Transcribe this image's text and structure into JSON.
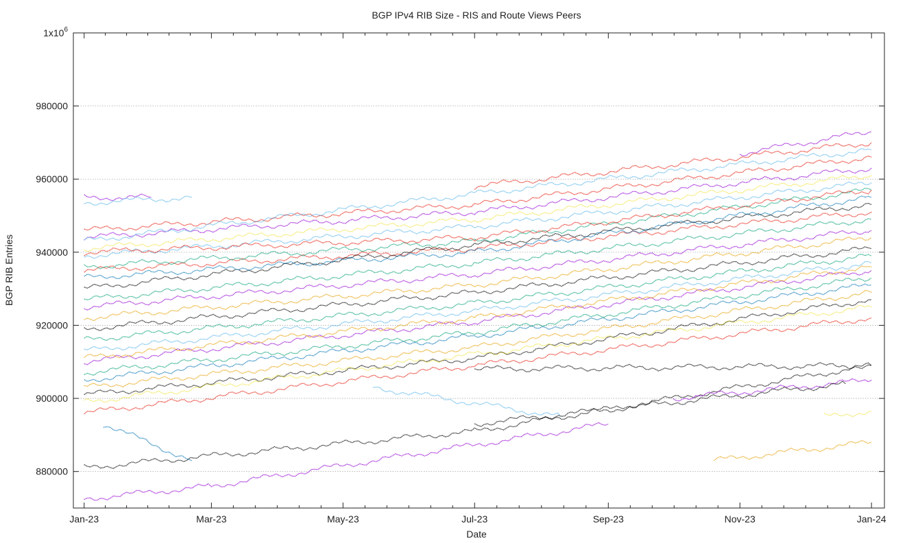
{
  "chart_data": {
    "type": "scatter",
    "title": "BGP IPv4 RIB Size - RIS and Route Views Peers",
    "xlabel": "Date",
    "ylabel": "BGP RIB Entries",
    "xlim": [
      "2022-12-27",
      "2024-01-07"
    ],
    "ylim": [
      870000,
      1000000
    ],
    "grid": {
      "x": false,
      "y": true
    },
    "y_ticks": [
      {
        "value": 880000,
        "label": "880000"
      },
      {
        "value": 900000,
        "label": "900000"
      },
      {
        "value": 920000,
        "label": "920000"
      },
      {
        "value": 940000,
        "label": "940000"
      },
      {
        "value": 960000,
        "label": "960000"
      },
      {
        "value": 980000,
        "label": "980000"
      },
      {
        "value": 1000000,
        "label": "1x10",
        "label_sup": "6"
      }
    ],
    "x_ticks": [
      {
        "value": "2023-01-01",
        "label": "Jan-23"
      },
      {
        "value": "2023-03-01",
        "label": "Mar-23"
      },
      {
        "value": "2023-05-01",
        "label": "May-23"
      },
      {
        "value": "2023-07-01",
        "label": "Jul-23"
      },
      {
        "value": "2023-09-01",
        "label": "Sep-23"
      },
      {
        "value": "2023-11-01",
        "label": "Nov-23"
      },
      {
        "value": "2024-01-01",
        "label": "Jan-24"
      }
    ],
    "palette": [
      "#9400d3",
      "#009e73",
      "#56b4e9",
      "#e69f00",
      "#f0e442",
      "#0072b2",
      "#e51e10",
      "#000000"
    ],
    "series": [
      {
        "color": 7,
        "x": [
          "2023-01-01",
          "2023-07-01",
          "2024-01-01"
        ],
        "y": [
          901000,
          911000,
          927000
        ]
      },
      {
        "color": 3,
        "x": [
          "2023-01-01",
          "2023-07-01",
          "2024-01-01"
        ],
        "y": [
          903000,
          914000,
          929000
        ]
      },
      {
        "color": 4,
        "x": [
          "2023-01-01",
          "2023-07-01",
          "2024-01-01"
        ],
        "y": [
          899000,
          912000,
          925000
        ]
      },
      {
        "color": 5,
        "x": [
          "2023-01-01",
          "2023-07-01",
          "2024-01-01"
        ],
        "y": [
          905000,
          917000,
          931000
        ]
      },
      {
        "color": 1,
        "x": [
          "2023-01-01",
          "2023-07-01",
          "2024-01-01"
        ],
        "y": [
          907000,
          918000,
          933000
        ]
      },
      {
        "color": 0,
        "x": [
          "2023-01-01",
          "2023-07-01",
          "2024-01-01"
        ],
        "y": [
          910000,
          921000,
          935000
        ]
      },
      {
        "color": 6,
        "x": [
          "2023-01-01",
          "2023-07-01",
          "2024-01-01"
        ],
        "y": [
          896000,
          909000,
          922000
        ]
      },
      {
        "color": 2,
        "x": [
          "2023-01-01",
          "2023-07-01",
          "2024-01-01"
        ],
        "y": [
          913000,
          924000,
          937000
        ]
      },
      {
        "color": 1,
        "x": [
          "2023-01-01",
          "2023-07-01",
          "2024-01-01"
        ],
        "y": [
          916000,
          926000,
          939000
        ]
      },
      {
        "color": 7,
        "x": [
          "2023-01-01",
          "2023-07-01",
          "2024-01-01"
        ],
        "y": [
          919000,
          929000,
          941000
        ]
      },
      {
        "color": 3,
        "x": [
          "2023-01-01",
          "2023-07-01",
          "2024-01-01"
        ],
        "y": [
          922000,
          931000,
          944000
        ]
      },
      {
        "color": 0,
        "x": [
          "2023-01-01",
          "2023-07-01",
          "2024-01-01"
        ],
        "y": [
          925000,
          934000,
          946000
        ]
      },
      {
        "color": 6,
        "x": [
          "2023-01-01",
          "2023-07-01",
          "2024-01-01"
        ],
        "y": [
          935000,
          941000,
          951000
        ]
      },
      {
        "color": 7,
        "x": [
          "2023-01-01",
          "2023-07-01",
          "2024-01-01"
        ],
        "y": [
          930000,
          942000,
          953000
        ]
      },
      {
        "color": 5,
        "x": [
          "2023-01-01",
          "2023-07-01",
          "2024-01-01"
        ],
        "y": [
          933000,
          940000,
          955000
        ]
      },
      {
        "color": 1,
        "x": [
          "2023-01-01",
          "2023-07-01",
          "2024-01-01"
        ],
        "y": [
          936000,
          943000,
          957000
        ]
      },
      {
        "color": 2,
        "x": [
          "2023-01-01",
          "2023-07-01",
          "2024-01-01"
        ],
        "y": [
          939000,
          947000,
          959000
        ]
      },
      {
        "color": 4,
        "x": [
          "2023-01-01",
          "2023-07-01",
          "2024-01-01"
        ],
        "y": [
          941000,
          949000,
          961000
        ]
      },
      {
        "color": 0,
        "x": [
          "2023-01-01",
          "2023-07-01",
          "2024-01-01"
        ],
        "y": [
          944000,
          951000,
          963000
        ]
      },
      {
        "color": 6,
        "x": [
          "2023-01-01",
          "2023-07-01",
          "2024-01-01"
        ],
        "y": [
          946000,
          953000,
          966000
        ]
      },
      {
        "color": 2,
        "x": [
          "2023-01-01",
          "2023-07-01",
          "2024-01-01"
        ],
        "y": [
          943000,
          956000,
          968000
        ]
      },
      {
        "color": 0,
        "x": [
          "2023-01-01",
          "2023-02-01"
        ],
        "y": [
          955000,
          955000
        ]
      },
      {
        "color": 2,
        "x": [
          "2023-01-01",
          "2023-02-20"
        ],
        "y": [
          953500,
          955000
        ]
      },
      {
        "color": 0,
        "x": [
          "2023-11-01",
          "2024-01-01"
        ],
        "y": [
          967000,
          973000
        ]
      },
      {
        "color": 6,
        "x": [
          "2023-07-01",
          "2024-01-01"
        ],
        "y": [
          958000,
          970000
        ]
      },
      {
        "color": 1,
        "x": [
          "2023-01-01",
          "2023-07-01",
          "2024-01-01"
        ],
        "y": [
          927000,
          937000,
          949000
        ]
      },
      {
        "color": 3,
        "x": [
          "2023-01-01",
          "2023-07-01",
          "2024-01-01"
        ],
        "y": [
          911000,
          922000,
          936000
        ]
      },
      {
        "color": 7,
        "x": [
          "2023-01-01",
          "2023-07-01",
          "2024-01-01"
        ],
        "y": [
          881000,
          891000,
          909000
        ]
      },
      {
        "color": 0,
        "x": [
          "2023-01-01",
          "2023-03-01",
          "2023-09-01"
        ],
        "y": [
          872500,
          876000,
          893000
        ]
      },
      {
        "color": 0,
        "x": [
          "2023-10-01",
          "2024-01-01"
        ],
        "y": [
          900000,
          905000
        ]
      },
      {
        "color": 5,
        "x": [
          "2023-01-10",
          "2023-02-20"
        ],
        "y": [
          893000,
          883000
        ]
      },
      {
        "color": 7,
        "x": [
          "2023-07-01",
          "2024-01-01"
        ],
        "y": [
          908000,
          909000
        ]
      },
      {
        "color": 3,
        "x": [
          "2023-10-20",
          "2024-01-01"
        ],
        "y": [
          883000,
          888000
        ]
      },
      {
        "color": 4,
        "x": [
          "2023-12-10",
          "2024-01-01"
        ],
        "y": [
          895000,
          896500
        ]
      },
      {
        "color": 2,
        "x": [
          "2023-05-15",
          "2023-08-10"
        ],
        "y": [
          903000,
          895000
        ]
      },
      {
        "color": 7,
        "x": [
          "2023-07-01",
          "2023-12-20"
        ],
        "y": [
          893000,
          904000
        ]
      },
      {
        "color": 6,
        "x": [
          "2023-01-01",
          "2023-07-01",
          "2024-01-01"
        ],
        "y": [
          940000,
          944000,
          957000
        ]
      }
    ]
  }
}
